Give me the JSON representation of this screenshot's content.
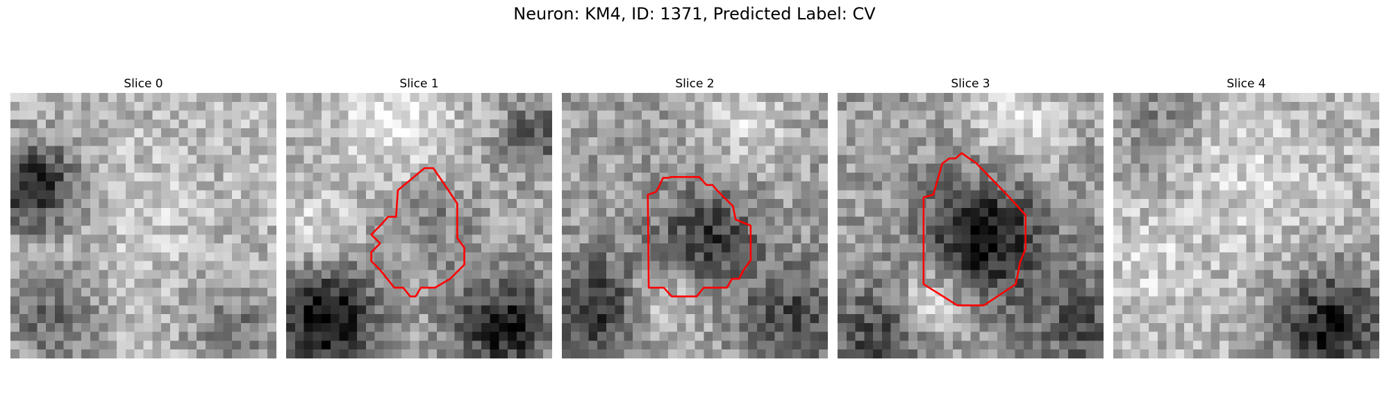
{
  "figure": {
    "title": "Neuron: KM4, ID: 1371, Predicted Label: CV",
    "outline_color": "#ff0000"
  },
  "panels": [
    {
      "title": "Slice 0",
      "has_outline": false
    },
    {
      "title": "Slice 1",
      "has_outline": true
    },
    {
      "title": "Slice 2",
      "has_outline": true
    },
    {
      "title": "Slice 3",
      "has_outline": true
    },
    {
      "title": "Slice 4",
      "has_outline": false
    }
  ]
}
